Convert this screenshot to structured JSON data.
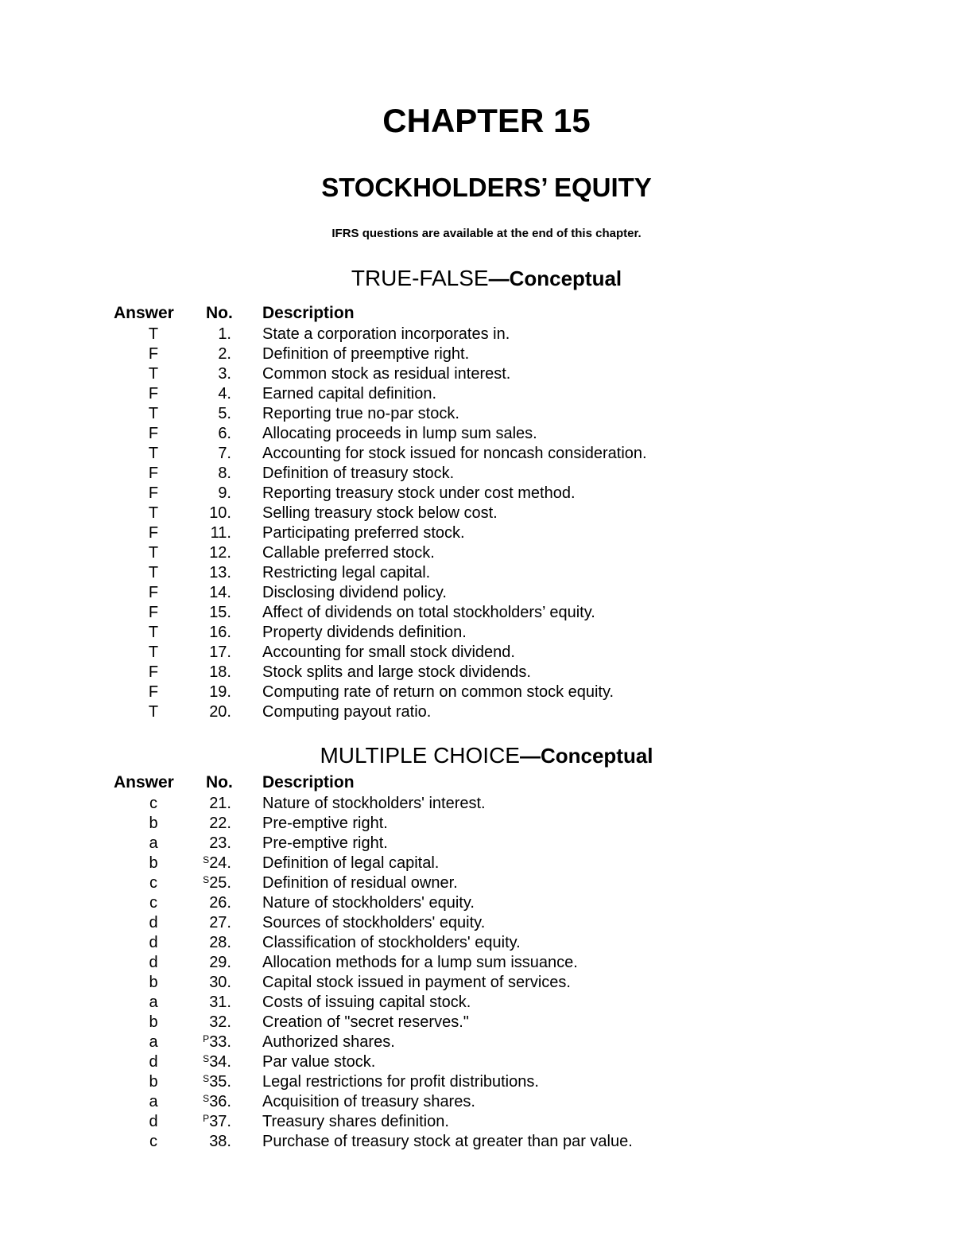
{
  "chapter": "CHAPTER 15",
  "subtitle": "STOCKHOLDERS’ EQUITY",
  "note": "IFRS questions are available at the end of this chapter.",
  "headers": {
    "answer": "Answer",
    "no": "No.",
    "description": "Description"
  },
  "sections": [
    {
      "title_main": "TRUE-FALSE",
      "title_sub": "—Conceptual",
      "rows": [
        {
          "answer": "T",
          "mark": "",
          "no": "1.",
          "description": "State a corporation incorporates in."
        },
        {
          "answer": "F",
          "mark": "",
          "no": "2.",
          "description": "Definition of preemptive right."
        },
        {
          "answer": "T",
          "mark": "",
          "no": "3.",
          "description": "Common stock as residual interest."
        },
        {
          "answer": "F",
          "mark": "",
          "no": "4.",
          "description": "Earned capital definition."
        },
        {
          "answer": "T",
          "mark": "",
          "no": "5.",
          "description": "Reporting true no-par stock."
        },
        {
          "answer": "F",
          "mark": "",
          "no": "6.",
          "description": "Allocating proceeds in lump sum sales."
        },
        {
          "answer": "T",
          "mark": "",
          "no": "7.",
          "description": "Accounting for stock issued for noncash consideration."
        },
        {
          "answer": "F",
          "mark": "",
          "no": "8.",
          "description": "Definition of treasury stock."
        },
        {
          "answer": "F",
          "mark": "",
          "no": "9.",
          "description": "Reporting treasury stock under cost method."
        },
        {
          "answer": "T",
          "mark": "",
          "no": "10.",
          "description": "Selling treasury stock below cost."
        },
        {
          "answer": "F",
          "mark": "",
          "no": "11.",
          "description": "Participating preferred stock."
        },
        {
          "answer": "T",
          "mark": "",
          "no": "12.",
          "description": "Callable preferred stock."
        },
        {
          "answer": "T",
          "mark": "",
          "no": "13.",
          "description": "Restricting legal capital."
        },
        {
          "answer": "F",
          "mark": "",
          "no": "14.",
          "description": "Disclosing dividend policy."
        },
        {
          "answer": "F",
          "mark": "",
          "no": "15.",
          "description": "Affect of dividends on total stockholders’ equity."
        },
        {
          "answer": "T",
          "mark": "",
          "no": "16.",
          "description": "Property dividends definition."
        },
        {
          "answer": "T",
          "mark": "",
          "no": "17.",
          "description": "Accounting for small stock dividend."
        },
        {
          "answer": "F",
          "mark": "",
          "no": "18.",
          "description": "Stock splits and large stock dividends."
        },
        {
          "answer": "F",
          "mark": "",
          "no": "19.",
          "description": "Computing rate of return on common stock equity."
        },
        {
          "answer": "T",
          "mark": "",
          "no": "20.",
          "description": "Computing payout ratio."
        }
      ]
    },
    {
      "title_main": "MULTIPLE CHOICE",
      "title_sub": "—Conceptual",
      "rows": [
        {
          "answer": "c",
          "mark": "",
          "no": "21.",
          "description": "Nature of stockholders' interest."
        },
        {
          "answer": "b",
          "mark": "",
          "no": "22.",
          "description": "Pre-emptive right."
        },
        {
          "answer": "a",
          "mark": "",
          "no": "23.",
          "description": "Pre-emptive right."
        },
        {
          "answer": "b",
          "mark": "S",
          "no": "24.",
          "description": "Definition of legal capital."
        },
        {
          "answer": "c",
          "mark": "S",
          "no": "25.",
          "description": "Definition of residual owner."
        },
        {
          "answer": "c",
          "mark": "",
          "no": "26.",
          "description": "Nature of stockholders' equity."
        },
        {
          "answer": "d",
          "mark": "",
          "no": "27.",
          "description": "Sources of stockholders' equity."
        },
        {
          "answer": "d",
          "mark": "",
          "no": "28.",
          "description": "Classification of stockholders' equity."
        },
        {
          "answer": "d",
          "mark": "",
          "no": "29.",
          "description": "Allocation methods for a lump sum issuance."
        },
        {
          "answer": "b",
          "mark": "",
          "no": "30.",
          "description": "Capital stock issued in payment of services."
        },
        {
          "answer": "a",
          "mark": "",
          "no": "31.",
          "description": "Costs of issuing capital stock."
        },
        {
          "answer": "b",
          "mark": "",
          "no": "32.",
          "description": "Creation of \"secret reserves.\""
        },
        {
          "answer": "a",
          "mark": "P",
          "no": "33.",
          "description": "Authorized shares."
        },
        {
          "answer": "d",
          "mark": "S",
          "no": "34.",
          "description": "Par value stock."
        },
        {
          "answer": "b",
          "mark": "S",
          "no": "35.",
          "description": "Legal restrictions for profit distributions."
        },
        {
          "answer": "a",
          "mark": "S",
          "no": "36.",
          "description": "Acquisition of treasury shares."
        },
        {
          "answer": "d",
          "mark": "P",
          "no": "37.",
          "description": "Treasury shares definition."
        },
        {
          "answer": "c",
          "mark": "",
          "no": "38.",
          "description": "Purchase of treasury stock at greater than par value."
        }
      ]
    }
  ]
}
